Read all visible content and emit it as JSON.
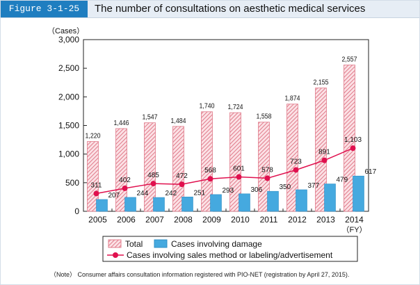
{
  "header": {
    "figure_label": "Figure 3-1-25",
    "title": "The number of consultations on aesthetic medical services"
  },
  "note": "（Note）  Consumer affairs consultation information registered with PIO-NET (registration by April 27, 2015).",
  "chart_data": {
    "type": "bar",
    "title": "The number of consultations on aesthetic medical services",
    "ylabel": "（Cases）",
    "x_unit": "（FY）",
    "ylim": [
      0,
      3000
    ],
    "yticks": [
      "0",
      "500",
      "1,000",
      "1,500",
      "2,000",
      "2,500",
      "3,000"
    ],
    "ytick_values": [
      0,
      500,
      1000,
      1500,
      2000,
      2500,
      3000
    ],
    "categories": [
      "2005",
      "2006",
      "2007",
      "2008",
      "2009",
      "2010",
      "2011",
      "2012",
      "2013",
      "2014"
    ],
    "series": [
      {
        "name": "Total",
        "type": "bar",
        "pattern": "hatched",
        "color": "#e07a8a",
        "values": [
          1220,
          1446,
          1547,
          1484,
          1740,
          1724,
          1558,
          1874,
          2155,
          2557
        ],
        "labels": [
          "1,220",
          "1,446",
          "1,547",
          "1,484",
          "1,740",
          "1,724",
          "1,558",
          "1,874",
          "2,155",
          "2,557"
        ]
      },
      {
        "name": "Cases involving damage",
        "type": "bar",
        "color": "#45a9df",
        "values": [
          207,
          244,
          242,
          251,
          293,
          306,
          350,
          377,
          479,
          617
        ],
        "labels": [
          "207",
          "244",
          "242",
          "251",
          "293",
          "306",
          "350",
          "377",
          "479",
          "617"
        ]
      },
      {
        "name": "Cases involving sales method or labeling/advertisement",
        "type": "line",
        "color": "#e0104e",
        "values": [
          311,
          402,
          485,
          472,
          568,
          601,
          578,
          723,
          891,
          1103
        ],
        "labels": [
          "311",
          "402",
          "485",
          "472",
          "568",
          "601",
          "578",
          "723",
          "891",
          "1,103"
        ]
      }
    ],
    "legend_position": "bottom",
    "grid": false
  }
}
